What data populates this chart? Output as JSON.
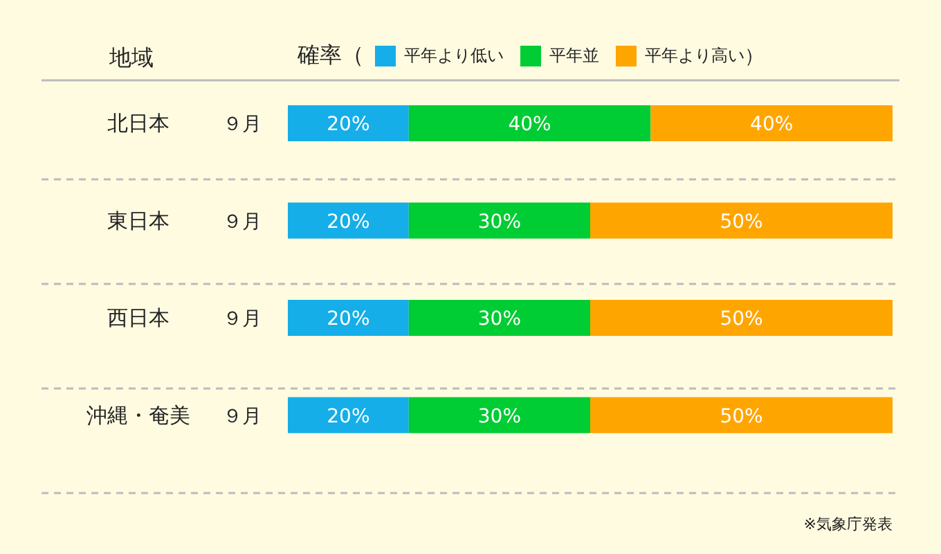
{
  "chart_data": {
    "type": "bar",
    "orientation": "horizontal",
    "stacked": true,
    "ylabel": "地域",
    "legend_title": "確率（",
    "legend": "top",
    "categories": [
      "北日本",
      "東日本",
      "西日本",
      "沖縄・奄美"
    ],
    "series": [
      {
        "name": "平年より低い",
        "color": "#15aee8",
        "values": [
          20,
          20,
          20,
          20
        ],
        "value_labels": [
          "20%",
          "20%",
          "20%",
          "20%"
        ]
      },
      {
        "name": "平年並",
        "color": "#00cc33",
        "values": [
          40,
          30,
          30,
          30
        ],
        "value_labels": [
          "40%",
          "30%",
          "30%",
          "30%"
        ]
      },
      {
        "name": "平年より高い",
        "color": "#ffa500",
        "values": [
          40,
          50,
          50,
          50
        ],
        "value_labels": [
          "40%",
          "50%",
          "50%",
          "50%"
        ]
      }
    ],
    "annotations": [
      "９月",
      "９月",
      "９月",
      "９月",
      "）",
      "※気象庁発表"
    ]
  }
}
